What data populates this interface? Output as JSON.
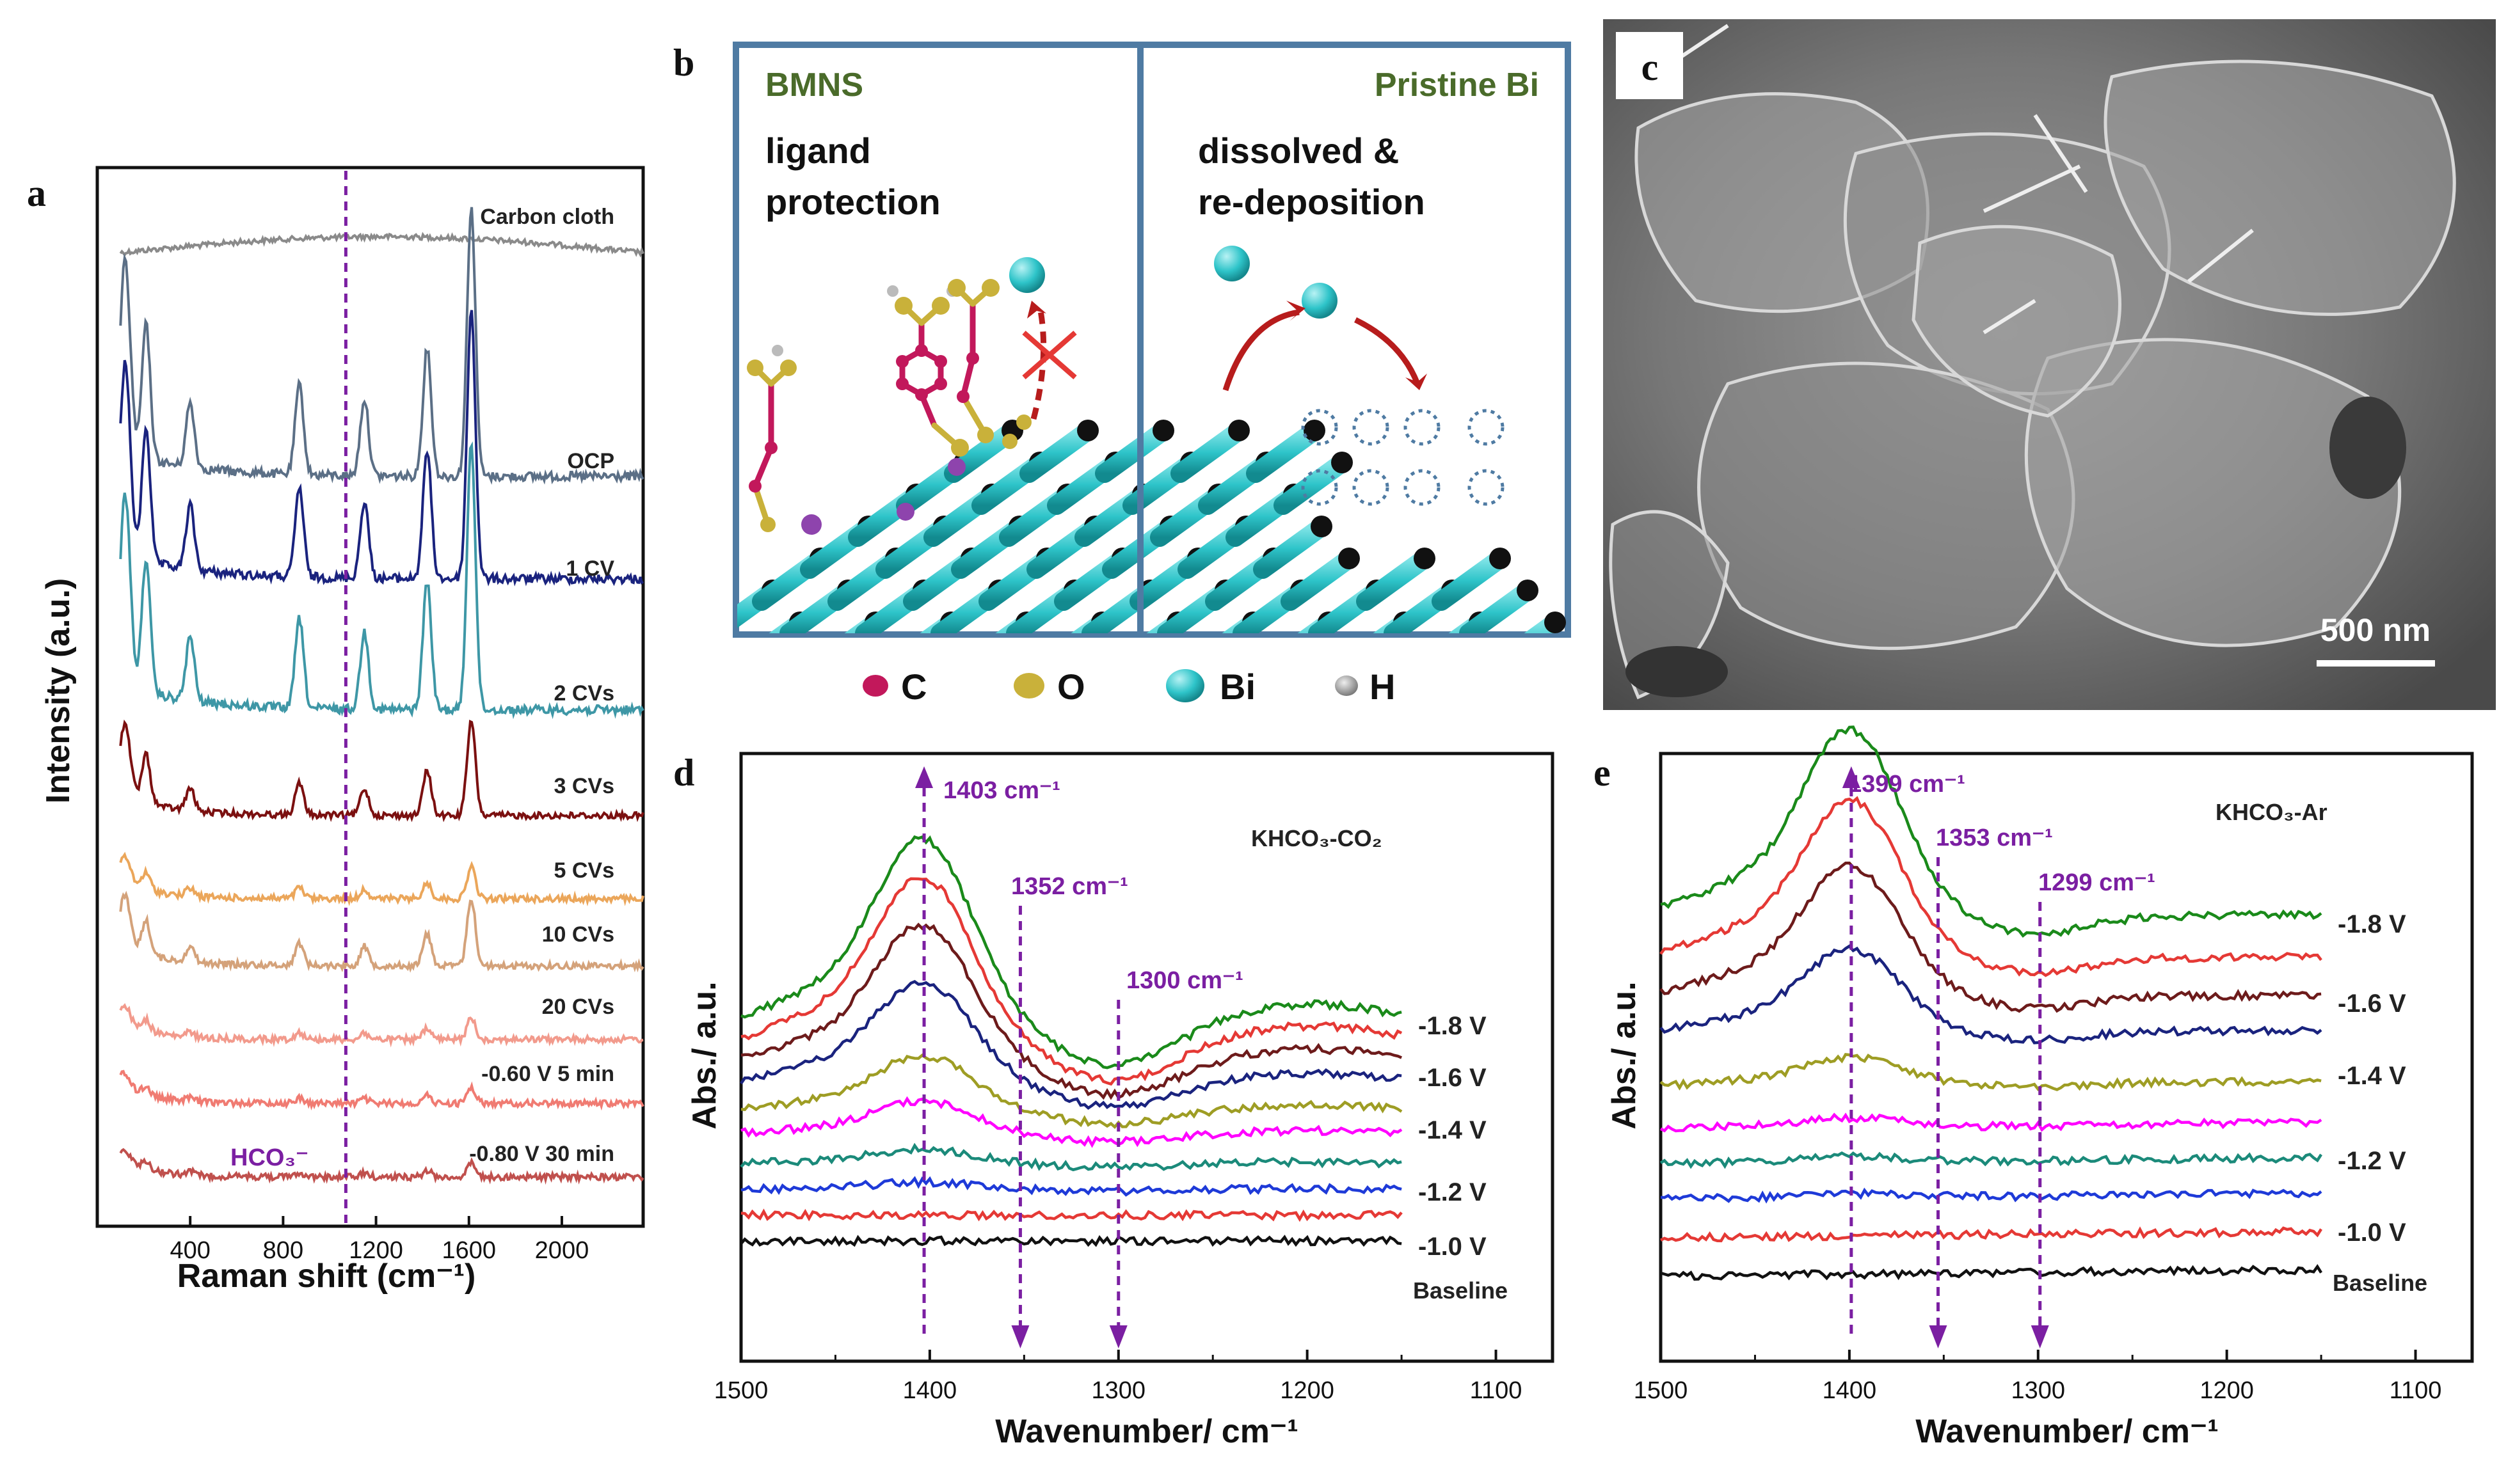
{
  "panels": {
    "a": "a",
    "b": "b",
    "c": "c",
    "d": "d",
    "e": "e"
  },
  "colors": {
    "purple": "#7b1fa2",
    "bi": "#2ec4c9",
    "carbon": "#c2185b",
    "oxygen": "#c9b13a",
    "frame": "#4f7ba3"
  },
  "chart_data": [
    {
      "panel": "a",
      "type": "line",
      "xlabel": "Raman shift (cm⁻¹)",
      "ylabel": "Intensity (a.u.)",
      "xlim": [
        0,
        2350
      ],
      "xticks": [
        "400",
        "800",
        "1200",
        "1600",
        "2000"
      ],
      "marker": {
        "x": 1070,
        "label": "HCO₃⁻"
      },
      "series": [
        {
          "name": "Carbon cloth",
          "color": "#8a8a8a"
        },
        {
          "name": "OCP",
          "color": "#5b6f86"
        },
        {
          "name": "1 CV",
          "color": "#1a237e"
        },
        {
          "name": "2 CVs",
          "color": "#3e97a6"
        },
        {
          "name": "3 CVs",
          "color": "#7b1010"
        },
        {
          "name": "5 CVs",
          "color": "#eba65a"
        },
        {
          "name": "10 CVs",
          "color": "#d4a27a"
        },
        {
          "name": "20 CVs",
          "color": "#f29a8c"
        },
        {
          "name": "-0.60 V 5 min",
          "color": "#f07b72"
        },
        {
          "name": "-0.80 V 30 min",
          "color": "#c0504d"
        }
      ],
      "peaks_cm1": [
        120,
        210,
        400,
        870,
        1150,
        1420,
        1610
      ]
    },
    {
      "panel": "d",
      "type": "line",
      "xlabel": "Wavenumber/ cm⁻¹",
      "ylabel": "Abs./ a.u.",
      "xlim": [
        1500,
        1070
      ],
      "xticks": [
        "1500",
        "1400",
        "1300",
        "1200",
        "1100"
      ],
      "condition": "KHCO₃-CO₂",
      "annotations": [
        {
          "x": 1403,
          "text": "1403 cm⁻¹",
          "dir": "up"
        },
        {
          "x": 1352,
          "text": "1352 cm⁻¹",
          "dir": "down"
        },
        {
          "x": 1300,
          "text": "1300 cm⁻¹",
          "dir": "down"
        }
      ],
      "labels": [
        "-1.8 V",
        "-1.6 V",
        "-1.4 V",
        "-1.2 V",
        "-1.0 V",
        "Baseline"
      ],
      "series": [
        {
          "color": "#1a8a1a",
          "peak": 1.0
        },
        {
          "color": "#e53935",
          "peak": 0.9
        },
        {
          "color": "#6d1b1b",
          "peak": 0.75
        },
        {
          "color": "#1a237e",
          "peak": 0.55
        },
        {
          "color": "#9e9d24",
          "peak": 0.3
        },
        {
          "color": "#ff00ff",
          "peak": 0.18
        },
        {
          "color": "#1b8a7a",
          "peak": 0.08
        },
        {
          "color": "#1e3ad8",
          "peak": 0.04
        },
        {
          "color": "#e53935",
          "peak": 0.0
        },
        {
          "color": "#111111",
          "peak": 0.0
        }
      ]
    },
    {
      "panel": "e",
      "type": "line",
      "xlabel": "Wavenumber/ cm⁻¹",
      "ylabel": "Abs./ a.u.",
      "xlim": [
        1500,
        1070
      ],
      "xticks": [
        "1500",
        "1400",
        "1300",
        "1200",
        "1100"
      ],
      "condition": "KHCO₃-Ar",
      "annotations": [
        {
          "x": 1399,
          "text": "1399 cm⁻¹",
          "dir": "up"
        },
        {
          "x": 1353,
          "text": "1353 cm⁻¹",
          "dir": "down"
        },
        {
          "x": 1299,
          "text": "1299 cm⁻¹",
          "dir": "down"
        }
      ],
      "labels": [
        "-1.8 V",
        "-1.6 V",
        "-1.4 V",
        "-1.2 V",
        "-1.0 V",
        "Baseline"
      ],
      "series": [
        {
          "color": "#1a8a1a",
          "peak": 1.0
        },
        {
          "color": "#e53935",
          "peak": 0.85
        },
        {
          "color": "#6d1b1b",
          "peak": 0.7
        },
        {
          "color": "#1a237e",
          "peak": 0.45
        },
        {
          "color": "#9e9d24",
          "peak": 0.15
        },
        {
          "color": "#ff00ff",
          "peak": 0.05
        },
        {
          "color": "#1b8a7a",
          "peak": 0.03
        },
        {
          "color": "#1e3ad8",
          "peak": 0.02
        },
        {
          "color": "#e53935",
          "peak": 0.0
        },
        {
          "color": "#111111",
          "peak": 0.0
        }
      ]
    }
  ],
  "schematic": {
    "left_title": "BMNS",
    "left_text": [
      "ligand",
      "protection"
    ],
    "right_title": "Pristine Bi",
    "right_text": [
      "dissolved &",
      "re-deposition"
    ],
    "legend": [
      "C",
      "O",
      "Bi",
      "H"
    ]
  },
  "sem": {
    "scale_label": "500 nm"
  }
}
